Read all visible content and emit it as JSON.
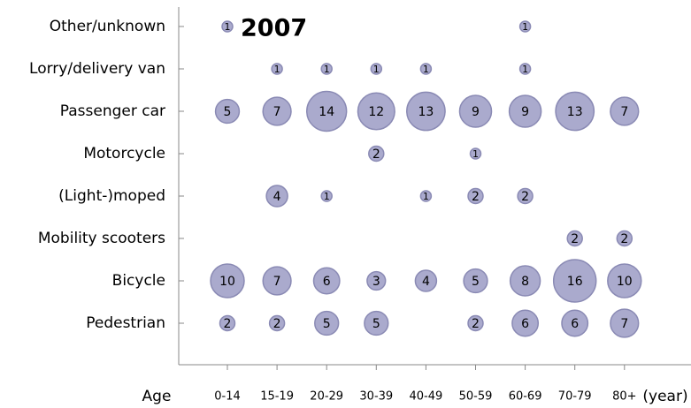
{
  "chart_data": {
    "type": "bubble",
    "title": "2007",
    "x_label": "Age",
    "x_unit": "(year)",
    "categories": [
      "0-14",
      "15-19",
      "20-29",
      "30-39",
      "40-49",
      "50-59",
      "60-69",
      "70-79",
      "80+"
    ],
    "color": "#aaaacd",
    "series": [
      {
        "name": "Other/unknown",
        "values": [
          1,
          null,
          null,
          null,
          null,
          null,
          1,
          null,
          null
        ]
      },
      {
        "name": "Lorry/delivery van",
        "values": [
          null,
          1,
          1,
          1,
          1,
          null,
          1,
          null,
          null
        ]
      },
      {
        "name": "Passenger car",
        "values": [
          5,
          7,
          14,
          12,
          13,
          9,
          9,
          13,
          7
        ]
      },
      {
        "name": "Motorcycle",
        "values": [
          null,
          null,
          null,
          2,
          null,
          1,
          null,
          null,
          null
        ]
      },
      {
        "name": "(Light-)moped",
        "values": [
          null,
          4,
          1,
          null,
          1,
          2,
          2,
          null,
          null
        ]
      },
      {
        "name": "Mobility scooters",
        "values": [
          null,
          null,
          null,
          null,
          null,
          null,
          null,
          2,
          2
        ]
      },
      {
        "name": "Bicycle",
        "values": [
          10,
          7,
          6,
          3,
          4,
          5,
          8,
          16,
          10
        ]
      },
      {
        "name": "Pedestrian",
        "values": [
          2,
          2,
          5,
          5,
          null,
          2,
          6,
          6,
          7
        ]
      }
    ]
  }
}
